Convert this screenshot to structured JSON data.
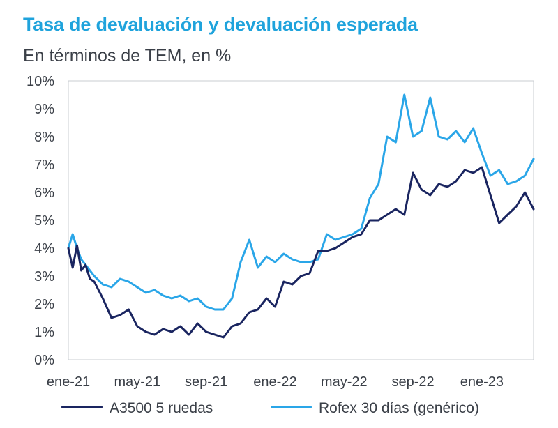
{
  "chart_data": {
    "type": "line",
    "title": "Tasa de devaluación y devaluación esperada",
    "subtitle": "En términos de TEM, en %",
    "xlabel": "",
    "ylabel": "",
    "ylim": [
      0,
      10
    ],
    "ytick_values": [
      0,
      1,
      2,
      3,
      4,
      5,
      6,
      7,
      8,
      9,
      10
    ],
    "ytick_labels": [
      "0%",
      "1%",
      "2%",
      "3%",
      "4%",
      "5%",
      "6%",
      "7%",
      "8%",
      "9%",
      "10%"
    ],
    "xlim": [
      0,
      27
    ],
    "xtick_values": [
      0,
      4,
      8,
      12,
      16,
      20,
      24
    ],
    "xtick_labels": [
      "ene-21",
      "may-21",
      "sep-21",
      "ene-22",
      "may-22",
      "sep-22",
      "ene-23"
    ],
    "grid": false,
    "legend_position": "bottom",
    "colors": {
      "title": "#1fa3dc",
      "text": "#3a3f47",
      "plot_border": "#c8ccd2"
    },
    "series": [
      {
        "name": "A3500 5 ruedas",
        "color": "#1a2560",
        "x": [
          0,
          0.25,
          0.5,
          0.75,
          1,
          1.25,
          1.5,
          2,
          2.5,
          3,
          3.5,
          4,
          4.5,
          5,
          5.5,
          6,
          6.5,
          7,
          7.5,
          8,
          8.5,
          9,
          9.5,
          10,
          10.5,
          11,
          11.5,
          12,
          12.5,
          13,
          13.5,
          14,
          14.5,
          15,
          15.5,
          16,
          16.5,
          17,
          17.5,
          18,
          18.5,
          19,
          19.5,
          20,
          20.5,
          21,
          21.5,
          22,
          22.5,
          23,
          23.5,
          24,
          24.5,
          25,
          25.5,
          26,
          26.5,
          27
        ],
        "y": [
          4.0,
          3.3,
          4.1,
          3.2,
          3.4,
          2.9,
          2.8,
          2.2,
          1.5,
          1.6,
          1.8,
          1.2,
          1.0,
          0.9,
          1.1,
          1.0,
          1.2,
          0.9,
          1.3,
          1.0,
          0.9,
          0.8,
          1.2,
          1.3,
          1.7,
          1.8,
          2.2,
          1.9,
          2.8,
          2.7,
          3.0,
          3.1,
          3.9,
          3.9,
          4.0,
          4.2,
          4.4,
          4.5,
          5.0,
          5.0,
          5.2,
          5.4,
          5.2,
          6.7,
          6.1,
          5.9,
          6.3,
          6.2,
          6.4,
          6.8,
          6.7,
          6.9,
          5.9,
          4.9,
          5.2,
          5.5,
          6.0,
          5.4
        ]
      },
      {
        "name": "Rofex 30 días (genérico)",
        "color": "#2aa6e8",
        "x": [
          0,
          0.25,
          0.5,
          0.75,
          1,
          1.25,
          1.5,
          2,
          2.5,
          3,
          3.5,
          4,
          4.5,
          5,
          5.5,
          6,
          6.5,
          7,
          7.5,
          8,
          8.5,
          9,
          9.5,
          10,
          10.5,
          11,
          11.5,
          12,
          12.5,
          13,
          13.5,
          14,
          14.5,
          15,
          15.5,
          16,
          16.5,
          17,
          17.5,
          18,
          18.5,
          19,
          19.5,
          20,
          20.5,
          21,
          21.5,
          22,
          22.5,
          23,
          23.5,
          24,
          24.5,
          25,
          25.5,
          26,
          26.5,
          27
        ],
        "y": [
          4.0,
          4.5,
          4.0,
          3.6,
          3.4,
          3.2,
          3.0,
          2.7,
          2.6,
          2.9,
          2.8,
          2.6,
          2.4,
          2.5,
          2.3,
          2.2,
          2.3,
          2.1,
          2.2,
          1.9,
          1.8,
          1.8,
          2.2,
          3.5,
          4.3,
          3.3,
          3.7,
          3.5,
          3.8,
          3.6,
          3.5,
          3.5,
          3.6,
          4.5,
          4.3,
          4.4,
          4.5,
          4.7,
          5.8,
          6.3,
          8.0,
          7.8,
          9.5,
          8.0,
          8.2,
          9.4,
          8.0,
          7.9,
          8.2,
          7.8,
          8.3,
          7.4,
          6.6,
          6.8,
          6.3,
          6.4,
          6.6,
          7.2
        ]
      }
    ]
  }
}
